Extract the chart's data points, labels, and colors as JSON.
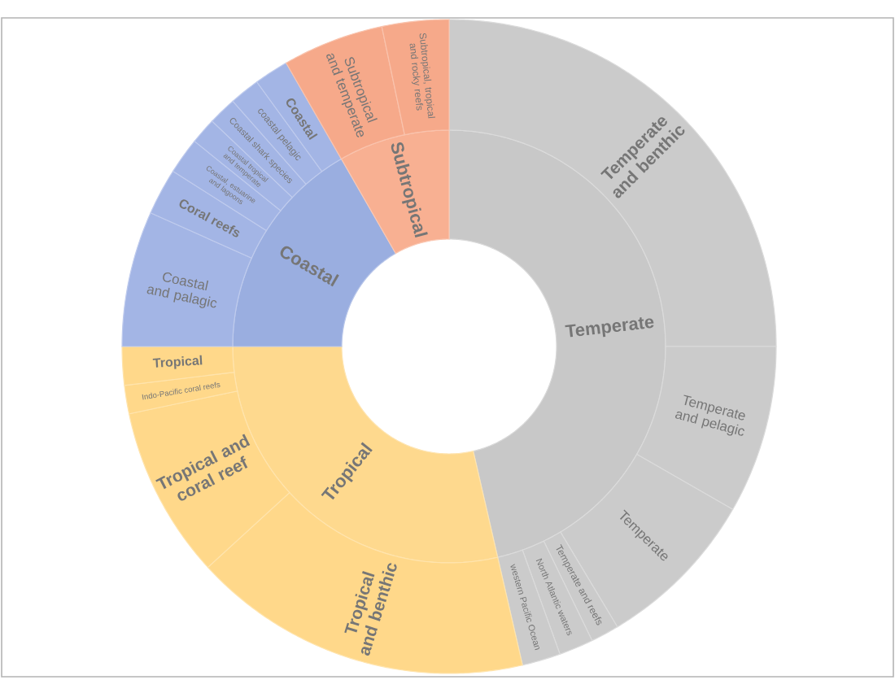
{
  "chart_data": [
    {
      "type": "donut",
      "categories": [
        "Temperate",
        "Tropical",
        "Coastal",
        "Subtropical"
      ],
      "values": [
        46.4,
        28.6,
        16.7,
        8.3
      ],
      "colors": [
        "#c8c8c8",
        "#fed98e",
        "#9aaee0",
        "#f8b092"
      ]
    },
    {
      "type": "donut",
      "categories": [
        "Temperate and benthic",
        "Temperate and pelagic",
        "Temperate",
        "Temperate and reefs",
        "North Atlantic waters",
        "western Pacific Ocean",
        "Tropical and benthic",
        "Tropical and coral reef",
        "Indo-Pacific coral reefs",
        "Tropical",
        "Coastal and palagic",
        "Coral reefs",
        "Coastal, estuarine and lagoons",
        "Coastal tropical and temperate",
        "Coastal shark species",
        "coastal pelagic",
        "Coastal",
        "Subtropical and temperate",
        "Subtropical, tropical and rocky reefs"
      ],
      "values": [
        25.0,
        8.3,
        8.1,
        1.4,
        1.7,
        1.9,
        16.8,
        8.5,
        1.4,
        1.9,
        6.7,
        2.3,
        1.8,
        1.3,
        1.4,
        1.5,
        1.7,
        5.0,
        3.3
      ],
      "colors": [
        "#cbcbcb",
        "#cbcbcb",
        "#cbcbcb",
        "#cbcbcb",
        "#cbcbcb",
        "#cbcbcb",
        "#ffd88a",
        "#ffd88a",
        "#ffd88a",
        "#ffd88a",
        "#a3b5e5",
        "#a3b5e5",
        "#a3b5e5",
        "#a3b5e5",
        "#a3b5e5",
        "#a3b5e5",
        "#a3b5e5",
        "#f6a98a",
        "#f6a98a"
      ]
    }
  ]
}
